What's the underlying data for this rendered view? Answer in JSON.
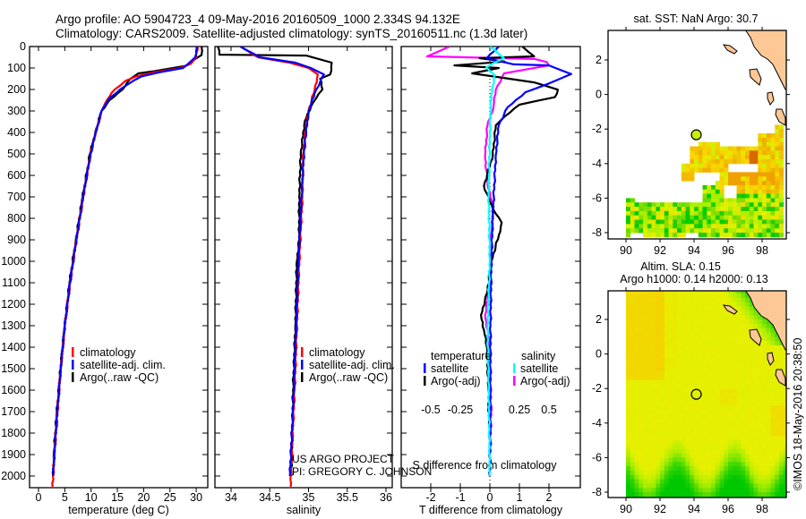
{
  "header": {
    "title_line1": "Argo profile: AO 5904723_4 09-May-2016 20160509_1000 2.334S 94.132E",
    "title_line2": "Climatology: CARS2009. Satellite-adjusted climatology: synTS_20160511.nc (1.3d later)"
  },
  "credits": {
    "project": "US ARGO PROJECT",
    "pi": "PI: GREGORY C. JOHNSON",
    "imos": "©IMOS 18-May-2016 20:38:50"
  },
  "colors": {
    "climatology": "#ff0000",
    "satellite": "#0000ff",
    "argo": "#000000",
    "sal_satellite": "#00ffff",
    "sal_argo": "#ff00ff",
    "land": "#fdc895"
  },
  "chart_data": [
    {
      "type": "line",
      "id": "temperature",
      "xlabel": "temperature (deg C)",
      "ylabel": "",
      "xlim": [
        -2,
        32
      ],
      "ylim": [
        2055,
        0
      ],
      "xticks": [
        "0",
        "5",
        "10",
        "15",
        "20",
        "25",
        "30"
      ],
      "yticks": [
        "0",
        "100",
        "200",
        "300",
        "400",
        "500",
        "600",
        "700",
        "800",
        "900",
        "1000",
        "1100",
        "1200",
        "1300",
        "1400",
        "1500",
        "1600",
        "1700",
        "1800",
        "1900",
        "2000"
      ],
      "legend": [
        "climatology",
        "satellite-adj. clim.",
        "Argo(..raw -QC)"
      ],
      "series": [
        {
          "name": "climatology",
          "color": "#ff0000",
          "depth": [
            0,
            50,
            80,
            100,
            120,
            140,
            160,
            200,
            250,
            300,
            400,
            500,
            700,
            900,
            1100,
            1300,
            1500,
            1700,
            1900,
            2050
          ],
          "values": [
            30.3,
            30,
            29,
            27,
            22,
            18.5,
            16.5,
            14.5,
            13,
            12,
            10.9,
            9.9,
            8.5,
            7.2,
            6,
            5,
            4.2,
            3.6,
            3.0,
            2.7
          ]
        },
        {
          "name": "satellite-adj. clim.",
          "color": "#0000ff",
          "depth": [
            0,
            50,
            80,
            100,
            120,
            140,
            160,
            200,
            250,
            300,
            400,
            500,
            700,
            900,
            1100,
            1300,
            1500,
            1700,
            1900,
            2000
          ],
          "values": [
            30.2,
            29.8,
            28.5,
            27.5,
            23,
            19.5,
            18,
            15.5,
            13.2,
            12,
            10.9,
            9.9,
            8.5,
            7.2,
            6,
            5,
            4.2,
            3.6,
            3.0,
            2.8
          ]
        },
        {
          "name": "Argo(..raw -QC)",
          "color": "#000000",
          "depth": [
            0,
            40,
            55,
            90,
            115,
            125,
            150,
            200,
            250,
            300,
            400,
            500,
            700,
            900,
            1100,
            1300,
            1500,
            1700,
            1900,
            2000
          ],
          "values": [
            31,
            31,
            30,
            28,
            22,
            19,
            17.5,
            16,
            13.5,
            12,
            10.8,
            9.8,
            8.4,
            7.1,
            5.9,
            5,
            4.2,
            3.5,
            2.9,
            2.8
          ]
        }
      ]
    },
    {
      "type": "line",
      "id": "salinity",
      "xlabel": "salinity",
      "xlim": [
        33.8,
        36.1
      ],
      "ylim": [
        2055,
        0
      ],
      "xticks": [
        "34",
        "34.5",
        "35",
        "35.5",
        "36"
      ],
      "legend": [
        "climatology",
        "satellite-adj. clim.",
        "Argo(..raw -QC)"
      ],
      "series": [
        {
          "name": "climatology",
          "color": "#ff0000",
          "depth": [
            0,
            50,
            75,
            100,
            130,
            200,
            300,
            400,
            500,
            700,
            1000,
            1300,
            1600,
            2000,
            2050
          ],
          "values": [
            34.12,
            34.35,
            34.75,
            35.0,
            35.12,
            35.08,
            35.0,
            34.96,
            34.93,
            34.92,
            34.88,
            34.85,
            34.82,
            34.77,
            34.77
          ]
        },
        {
          "name": "satellite-adj. clim.",
          "color": "#0000ff",
          "depth": [
            0,
            50,
            75,
            100,
            130,
            200,
            300,
            400,
            500,
            700,
            1000,
            1300,
            1600,
            2000
          ],
          "values": [
            34.12,
            34.37,
            34.83,
            35.03,
            35.2,
            35.1,
            35.0,
            34.97,
            34.94,
            34.91,
            34.87,
            34.84,
            34.81,
            34.76
          ]
        },
        {
          "name": "Argo(..raw -QC)",
          "color": "#000000",
          "depth": [
            0,
            38,
            42,
            75,
            130,
            150,
            200,
            260,
            350,
            500,
            700,
            900,
            1000,
            1300,
            1600,
            2000
          ],
          "values": [
            33.83,
            33.85,
            34.97,
            35.3,
            35.28,
            35.15,
            35.18,
            35.06,
            34.95,
            34.9,
            34.88,
            34.88,
            34.85,
            34.83,
            34.8,
            34.78
          ]
        }
      ]
    },
    {
      "type": "line",
      "id": "difference",
      "xlabel": "T difference from climatology",
      "x2label": "S difference from climatology",
      "xlim": [
        -3,
        3.05
      ],
      "x2lim": [
        -0.75,
        0.76
      ],
      "ylim": [
        2055,
        0
      ],
      "xticks": [
        "-2",
        "-1",
        "0",
        "1",
        "2"
      ],
      "x2ticks": [
        "-0.5",
        "-0.25",
        "0",
        "0.25",
        "0.5"
      ],
      "legend_headers": [
        "temperature",
        "salinity"
      ],
      "legend": [
        "satellite",
        "Argo(-adj)",
        "satellite",
        "Argo(-adj)"
      ],
      "series": [
        {
          "name": "temperature satellite",
          "axis": "T",
          "color": "#0000ff",
          "depth": [
            0,
            54,
            83,
            88,
            128,
            172,
            213,
            283,
            367,
            505,
            783,
            1000,
            1300,
            1600,
            2000
          ],
          "values": [
            0.3,
            -0.1,
            0.8,
            2.0,
            2.75,
            2.0,
            1.2,
            0.6,
            0.3,
            0.2,
            0.1,
            0.05,
            0.02,
            0.02,
            0
          ]
        },
        {
          "name": "temperature Argo(-adj)",
          "axis": "T",
          "color": "#000000",
          "depth": [
            0,
            46,
            54,
            70,
            88,
            100,
            125,
            167,
            201,
            236,
            271,
            326,
            367,
            505,
            650,
            755,
            820,
            880,
            1000,
            1150,
            1250,
            1320,
            1400,
            1600,
            1800,
            2000
          ],
          "values": [
            1.1,
            1.5,
            -0.35,
            0.5,
            -1.2,
            0.3,
            -0.6,
            1.5,
            2.3,
            2.2,
            1.0,
            0.5,
            0.2,
            0.1,
            -0.2,
            0.1,
            0.4,
            0.3,
            0.05,
            -0.1,
            -0.3,
            -0.2,
            -0.1,
            -0.05,
            0,
            0
          ]
        },
        {
          "name": "salinity satellite",
          "axis": "S",
          "color": "#00ffff",
          "depth": [
            0,
            54,
            97,
            132,
            229,
            400,
            700,
            1000,
            1300,
            1600,
            2000
          ],
          "values": [
            0,
            0.12,
            -0.03,
            0.04,
            0.01,
            0.0,
            -0.01,
            0,
            -0.02,
            -0.01,
            0
          ]
        },
        {
          "name": "salinity Argo(-adj)",
          "axis": "S",
          "color": "#ff00ff",
          "depth": [
            0,
            46,
            58,
            72,
            88,
            125,
            201,
            283,
            367,
            505,
            644,
            755,
            900,
            1100,
            1250,
            1400,
            1700,
            2000
          ],
          "values": [
            -0.34,
            -0.53,
            0.38,
            0.48,
            0.5,
            0.12,
            0.05,
            0.03,
            -0.02,
            -0.04,
            -0.02,
            0.03,
            0.01,
            0.0,
            -0.04,
            0.0,
            0.01,
            0
          ]
        }
      ]
    },
    {
      "type": "heatmap",
      "id": "sst-map",
      "title": "sat. SST: NaN Argo: 30.7",
      "xlim": [
        88.95,
        99.4
      ],
      "ylim": [
        -8.36,
        3.7
      ],
      "xticks": [
        "90",
        "92",
        "94",
        "96",
        "98"
      ],
      "yticks": [
        "2",
        "0",
        "-2",
        "-4",
        "-6",
        "-8"
      ],
      "argo_position": {
        "lon": 94.132,
        "lat": -2.334
      }
    },
    {
      "type": "heatmap",
      "id": "sla-map",
      "title_line1": "Altim. SLA: 0.15",
      "title_line2": "Argo h1000: 0.14 h2000: 0.13",
      "xlim": [
        88.95,
        99.4
      ],
      "ylim": [
        -8.36,
        3.7
      ],
      "xticks": [
        "90",
        "92",
        "94",
        "96",
        "98"
      ],
      "yticks": [
        "2",
        "0",
        "-2",
        "-4",
        "-6",
        "-8"
      ],
      "argo_position": {
        "lon": 94.132,
        "lat": -2.334
      }
    }
  ]
}
